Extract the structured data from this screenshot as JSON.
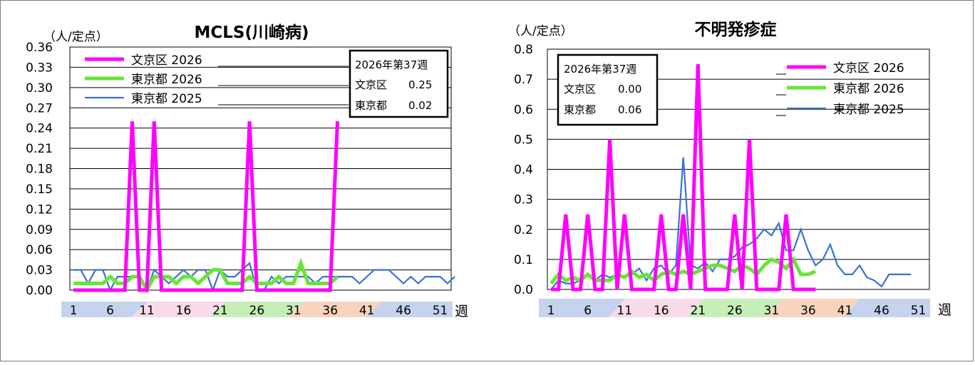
{
  "charts": [
    {
      "unit_label": "（人/定点）",
      "week_unit": "週",
      "info_box": {
        "title": "2026年第37週",
        "rows": [
          {
            "label": "文京区",
            "value": "0.25"
          },
          {
            "label": "東京都",
            "value": "0.02"
          }
        ]
      }
    },
    {
      "unit_label": "（人/定点）",
      "week_unit": "週",
      "info_box": {
        "title": "2026年第37週",
        "rows": [
          {
            "label": "文京区",
            "value": "0.00"
          },
          {
            "label": "東京都",
            "value": "0.06"
          }
        ]
      }
    }
  ],
  "colors": {
    "bunkyo_2026": "#ff00ff",
    "tokyo_2026": "#66e633",
    "tokyo_2025": "#3b6fd6",
    "season_blue": "#c5d3ee",
    "season_pink": "#f8dbe8",
    "season_green": "#c6efb8",
    "season_orange": "#f8d3bd"
  },
  "chart_data": [
    {
      "type": "line",
      "title": "MCLS(川崎病)",
      "ylabel": "（人/定点）",
      "xlabel": "週",
      "ylim": [
        0,
        0.36
      ],
      "yticks": [
        "0.00",
        "0.03",
        "0.06",
        "0.09",
        "0.12",
        "0.15",
        "0.18",
        "0.21",
        "0.24",
        "0.27",
        "0.30",
        "0.33",
        "0.36"
      ],
      "xticks": [
        1,
        6,
        11,
        16,
        21,
        26,
        31,
        36,
        41,
        46,
        51
      ],
      "legend": "top-left",
      "grid": true,
      "series": [
        {
          "name": "文京区 2026",
          "x_start": 1,
          "values": [
            0,
            0,
            0,
            0,
            0,
            0,
            0,
            0,
            0.25,
            0,
            0,
            0.25,
            0,
            0,
            0,
            0,
            0,
            0,
            0,
            0,
            0,
            0,
            0,
            0,
            0.25,
            0,
            0,
            0,
            0,
            0,
            0,
            0,
            0,
            0,
            0,
            0,
            0.25
          ]
        },
        {
          "name": "東京都 2026",
          "x_start": 1,
          "values": [
            0.01,
            0.01,
            0.01,
            0.01,
            0.01,
            0.02,
            0.01,
            0.01,
            0.02,
            0.02,
            0,
            0.02,
            0.02,
            0.02,
            0.01,
            0.02,
            0.02,
            0.01,
            0.02,
            0.03,
            0.03,
            0.01,
            0.01,
            0.01,
            0.02,
            0.01,
            0.01,
            0.01,
            0.02,
            0.01,
            0.01,
            0.04,
            0.01,
            0.01,
            0.01,
            0.01,
            0.02
          ]
        },
        {
          "name": "東京都 2025",
          "x_start": 1,
          "values": [
            0.03,
            0.03,
            0.01,
            0.03,
            0.03,
            0,
            0.02,
            0.02,
            0.02,
            0.02,
            0,
            0.03,
            0.02,
            0.01,
            0.02,
            0.03,
            0.02,
            0.03,
            0.03,
            0,
            0.03,
            0.02,
            0.02,
            0.03,
            0.04,
            0,
            0,
            0.02,
            0.01,
            0.02,
            0.02,
            0.02,
            0.02,
            0.01,
            0.02,
            0.02,
            0.02,
            0.02,
            0.02,
            0.01,
            0.02,
            0.03,
            0.03,
            0.03,
            0.02,
            0.01,
            0.02,
            0.01,
            0.02,
            0.02,
            0.02,
            0.01,
            0.02
          ]
        }
      ]
    },
    {
      "type": "line",
      "title": "不明発疹症",
      "ylabel": "（人/定点）",
      "xlabel": "週",
      "ylim": [
        0,
        0.8
      ],
      "yticks": [
        "0.0",
        "0.1",
        "0.2",
        "0.3",
        "0.4",
        "0.5",
        "0.6",
        "0.7",
        "0.8"
      ],
      "xticks": [
        1,
        6,
        11,
        16,
        21,
        26,
        31,
        36,
        41,
        46,
        51
      ],
      "legend": "top-right",
      "grid": true,
      "series": [
        {
          "name": "文京区 2026",
          "x_start": 1,
          "values": [
            0,
            0,
            0.25,
            0,
            0,
            0.25,
            0,
            0,
            0.5,
            0,
            0.25,
            0,
            0,
            0,
            0,
            0.25,
            0,
            0,
            0.25,
            0,
            0.75,
            0,
            0,
            0,
            0,
            0.25,
            0,
            0.5,
            0,
            0,
            0,
            0,
            0.25,
            0,
            0,
            0,
            0
          ]
        },
        {
          "name": "東京都 2026",
          "x_start": 1,
          "values": [
            0.02,
            0.05,
            0.03,
            0.04,
            0.03,
            0.05,
            0.03,
            0.03,
            0.03,
            0.05,
            0.04,
            0.06,
            0.04,
            0.05,
            0.03,
            0.05,
            0.06,
            0.05,
            0.06,
            0.05,
            0.06,
            0.07,
            0.08,
            0.08,
            0.07,
            0.06,
            0.08,
            0.07,
            0.05,
            0.08,
            0.1,
            0.09,
            0.07,
            0.1,
            0.05,
            0.05,
            0.06
          ]
        },
        {
          "name": "東京都 2025",
          "x_start": 1,
          "values": [
            0,
            0.03,
            0.02,
            0.02,
            0.03,
            0.05,
            0.03,
            0.05,
            0.04,
            0.05,
            0.04,
            0.05,
            0.07,
            0.03,
            0.07,
            0.08,
            0.05,
            0.08,
            0.44,
            0.08,
            0.07,
            0.09,
            0.06,
            0.1,
            0.1,
            0.11,
            0.14,
            0.15,
            0.17,
            0.2,
            0.18,
            0.22,
            0.13,
            0.13,
            0.2,
            0.13,
            0.08,
            0.1,
            0.15,
            0.08,
            0.05,
            0.05,
            0.08,
            0.04,
            0.03,
            0.01,
            0.05,
            0.05,
            0.05,
            0.05
          ]
        }
      ]
    }
  ]
}
